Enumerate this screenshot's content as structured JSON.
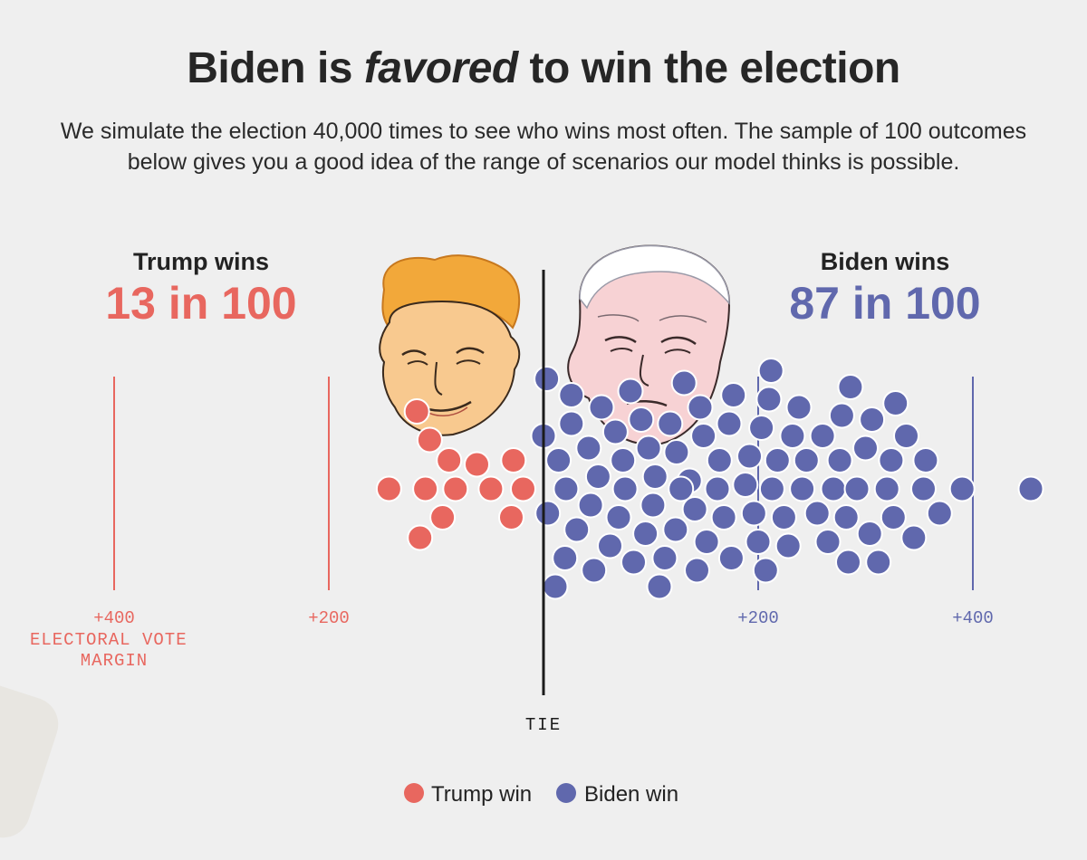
{
  "headline": {
    "before": "Biden is",
    "emphasis": "favored",
    "after": "to win the election"
  },
  "subtitle": "We simulate the election 40,000 times to see who wins most often. The sample of 100 outcomes below gives you a good idea of the range of scenarios our model thinks is possible.",
  "colors": {
    "trump": "#e8675f",
    "biden": "#6068ad",
    "tie_line": "#1b1b1b"
  },
  "chart_data": {
    "type": "scatter",
    "subtype": "beeswarm dot plot",
    "title": "Biden is favored to win the election",
    "xlabel": "ELECTORAL VOTE MARGIN",
    "xlim": [
      -500,
      480
    ],
    "ticks": [
      {
        "value": -400,
        "label": "+400",
        "side": "trump"
      },
      {
        "value": -200,
        "label": "+200",
        "side": "trump"
      },
      {
        "value": 200,
        "label": "+200",
        "side": "biden"
      },
      {
        "value": 400,
        "label": "+400",
        "side": "biden"
      }
    ],
    "tie_label": "TIE",
    "summaries": [
      {
        "label": "Trump wins",
        "value": "13 in 100",
        "side": "trump"
      },
      {
        "label": "Biden wins",
        "value": "87 in 100",
        "side": "biden"
      }
    ],
    "legend": [
      {
        "label": "Trump win",
        "side": "trump"
      },
      {
        "label": "Biden win",
        "side": "biden"
      }
    ],
    "series": [
      {
        "name": "Trump win",
        "count": 13,
        "margins": [
          -144,
          -118,
          -115,
          -110,
          -106,
          -94,
          -88,
          -82,
          -62,
          -49,
          -30,
          -28,
          -19
        ]
      },
      {
        "name": "Biden win",
        "count": 87,
        "margins": [
          0,
          3,
          4,
          11,
          14,
          20,
          21,
          26,
          26,
          31,
          42,
          44,
          47,
          51,
          54,
          62,
          67,
          70,
          74,
          76,
          81,
          84,
          91,
          95,
          98,
          102,
          104,
          108,
          113,
          118,
          123,
          124,
          128,
          131,
          136,
          141,
          143,
          146,
          149,
          152,
          162,
          164,
          168,
          173,
          175,
          177,
          188,
          192,
          196,
          200,
          203,
          207,
          210,
          212,
          213,
          218,
          224,
          228,
          232,
          238,
          241,
          245,
          255,
          260,
          265,
          270,
          276,
          278,
          282,
          284,
          286,
          292,
          300,
          304,
          306,
          312,
          320,
          324,
          326,
          328,
          338,
          345,
          354,
          356,
          369,
          390,
          454
        ]
      }
    ]
  }
}
